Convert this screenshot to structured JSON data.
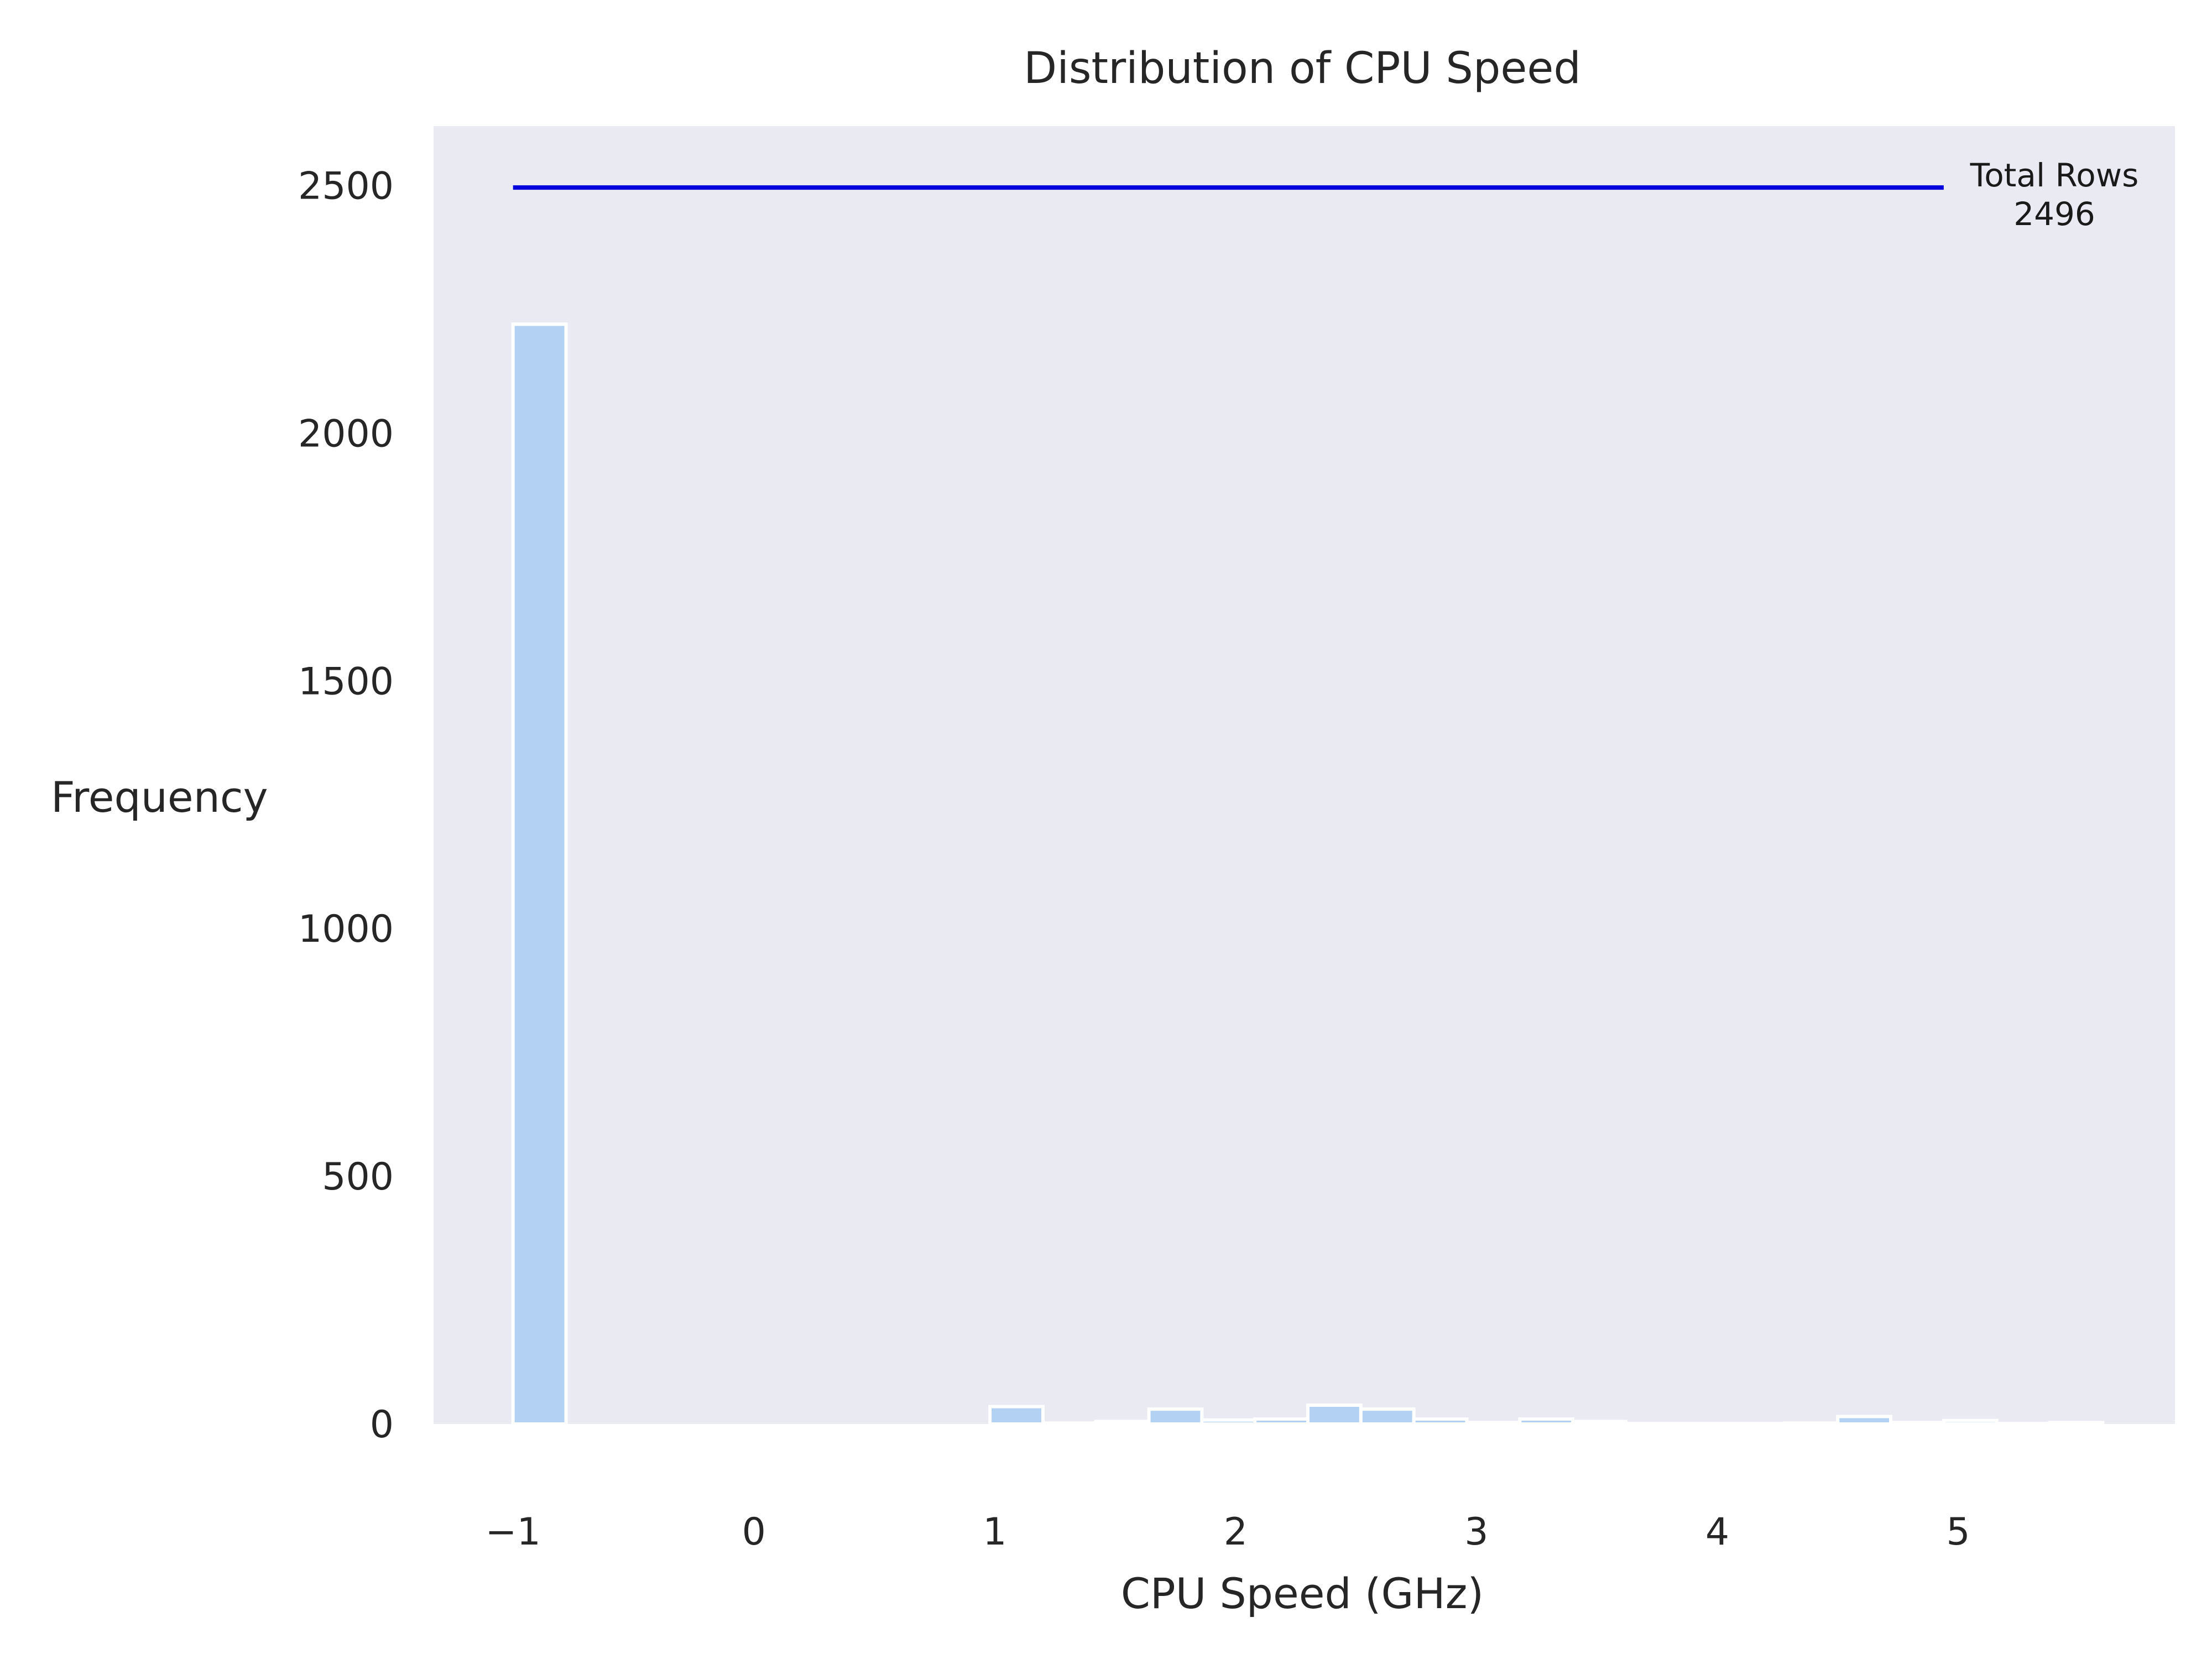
{
  "chart_data": {
    "type": "bar",
    "title": "Distribution of CPU Speed",
    "xlabel": "CPU Speed (GHz)",
    "ylabel": "Frequency",
    "xlim": [
      -1.33,
      5.9
    ],
    "ylim": [
      0,
      2620
    ],
    "xticks": [
      -1,
      0,
      1,
      2,
      3,
      4,
      5
    ],
    "xtick_labels": [
      "−1",
      "0",
      "1",
      "2",
      "3",
      "4",
      "5"
    ],
    "yticks": [
      0,
      500,
      1000,
      1500,
      2000,
      2500
    ],
    "ytick_labels": [
      "0",
      "500",
      "1000",
      "1500",
      "2000",
      "2500"
    ],
    "grid": false,
    "bin_width": 0.22,
    "bins": [
      {
        "start": -1.0,
        "count": 2220
      },
      {
        "start": -0.78,
        "count": 0
      },
      {
        "start": -0.56,
        "count": 0
      },
      {
        "start": -0.34,
        "count": 0
      },
      {
        "start": -0.12,
        "count": 0
      },
      {
        "start": 0.1,
        "count": 0
      },
      {
        "start": 0.32,
        "count": 0
      },
      {
        "start": 0.54,
        "count": 0
      },
      {
        "start": 0.76,
        "count": 0
      },
      {
        "start": 0.98,
        "count": 35
      },
      {
        "start": 1.2,
        "count": 2
      },
      {
        "start": 1.42,
        "count": 5
      },
      {
        "start": 1.64,
        "count": 30
      },
      {
        "start": 1.86,
        "count": 8
      },
      {
        "start": 2.08,
        "count": 10
      },
      {
        "start": 2.3,
        "count": 38
      },
      {
        "start": 2.52,
        "count": 30
      },
      {
        "start": 2.74,
        "count": 10
      },
      {
        "start": 2.96,
        "count": 3
      },
      {
        "start": 3.18,
        "count": 10
      },
      {
        "start": 3.4,
        "count": 5
      },
      {
        "start": 3.62,
        "count": 1
      },
      {
        "start": 3.84,
        "count": 1
      },
      {
        "start": 4.06,
        "count": 1
      },
      {
        "start": 4.28,
        "count": 2
      },
      {
        "start": 4.5,
        "count": 15
      },
      {
        "start": 4.72,
        "count": 3
      },
      {
        "start": 4.94,
        "count": 7
      },
      {
        "start": 5.16,
        "count": 1
      },
      {
        "start": 5.38,
        "count": 3
      }
    ],
    "reference_line": {
      "y": 2496,
      "x_start": -1.0,
      "x_end": 4.94
    },
    "annotation": {
      "line1": "Total Rows",
      "line2": "2496"
    },
    "colors": {
      "bar_fill": "#b3d1f2",
      "bar_edge": "#ffffff",
      "plot_background": "#eaeaf2",
      "reference_line": "#0000dd"
    }
  }
}
